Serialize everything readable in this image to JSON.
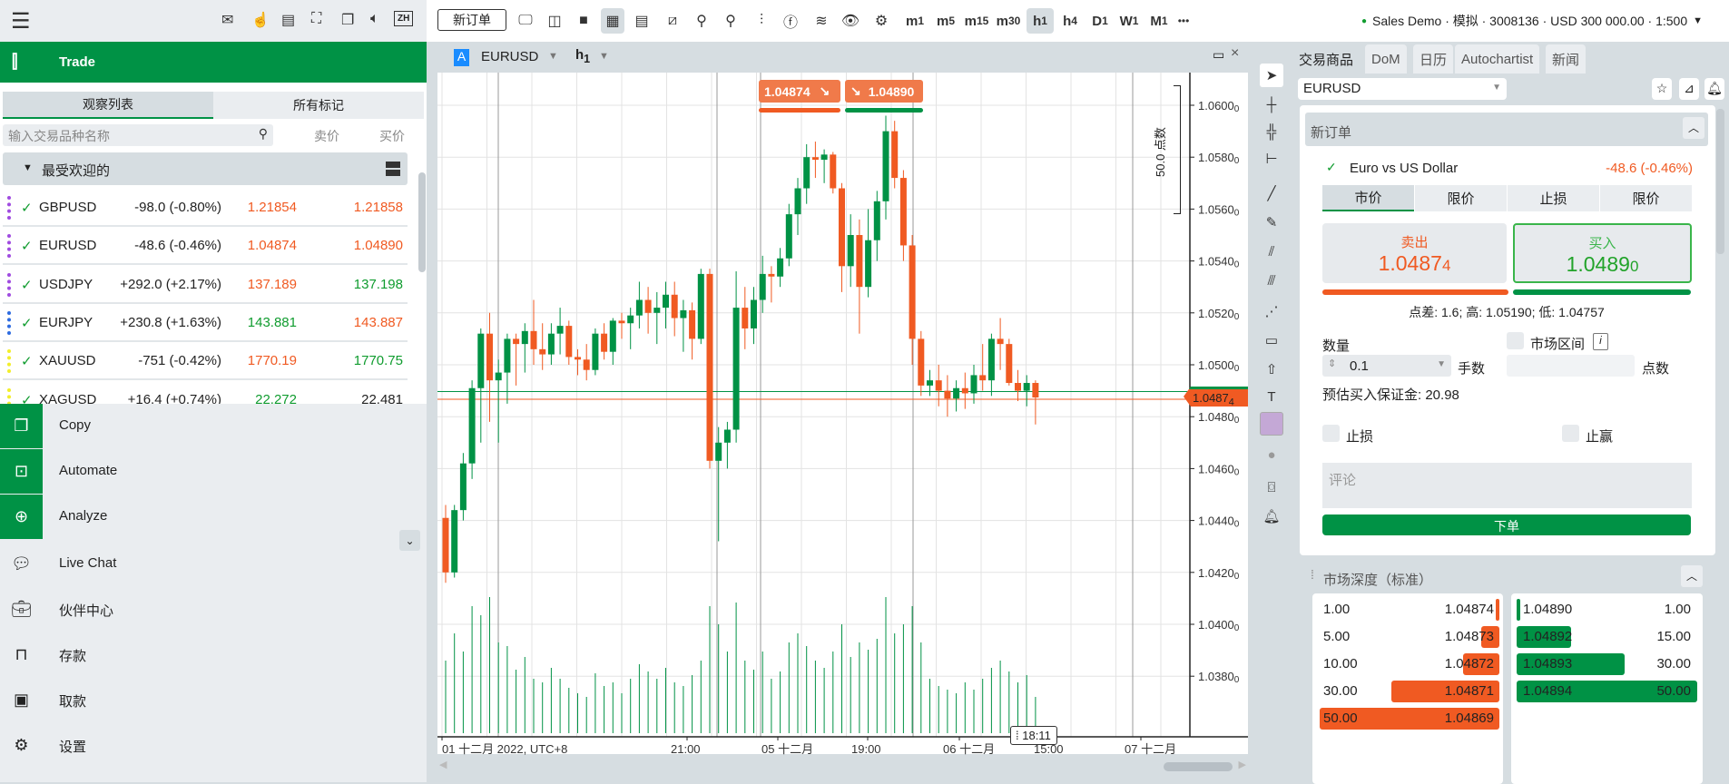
{
  "topbar": {
    "zh": "ZH",
    "new_order": "新订单",
    "timeframes": [
      {
        "l": "m",
        "s": "1"
      },
      {
        "l": "m",
        "s": "5"
      },
      {
        "l": "m",
        "s": "15"
      },
      {
        "l": "m",
        "s": "30"
      },
      {
        "l": "h",
        "s": "1",
        "active": true
      },
      {
        "l": "h",
        "s": "4"
      },
      {
        "l": "D",
        "s": "1"
      },
      {
        "l": "W",
        "s": "1"
      },
      {
        "l": "M",
        "s": "1"
      }
    ],
    "more": "•••",
    "account": "Sales Demo · 模拟 · 3008136 · USD 300 000.00 · 1:500",
    "account_status_color": "#109c2f"
  },
  "sidebar": {
    "trade": "Trade",
    "tabs": [
      "观察列表",
      "所有标记"
    ],
    "search_placeholder": "输入交易品种名称",
    "col_sell": "卖价",
    "col_buy": "买价",
    "group": "最受欢迎的",
    "rows": [
      {
        "sym": "GBPUSD",
        "chg": "-98.0 (-0.80%)",
        "sell": "1.21854",
        "buy": "1.21858",
        "sc": "red",
        "bc": "red",
        "tag": "#a04be0"
      },
      {
        "sym": "EURUSD",
        "chg": "-48.6 (-0.46%)",
        "sell": "1.04874",
        "buy": "1.04890",
        "sc": "red",
        "bc": "red",
        "tag": "#a04be0"
      },
      {
        "sym": "USDJPY",
        "chg": "+292.0 (+2.17%)",
        "sell": "137.189",
        "buy": "137.198",
        "sc": "red",
        "bc": "grn",
        "tag": "#a04be0"
      },
      {
        "sym": "EURJPY",
        "chg": "+230.8 (+1.63%)",
        "sell": "143.881",
        "buy": "143.887",
        "sc": "grn",
        "bc": "red",
        "tag": "#2d6be0"
      },
      {
        "sym": "XAUUSD",
        "chg": "-751 (-0.42%)",
        "sell": "1770.19",
        "buy": "1770.75",
        "sc": "red",
        "bc": "grn",
        "tag": "#f2ee2a"
      },
      {
        "sym": "XAGUSD",
        "chg": "+16.4 (+0.74%)",
        "sell": "22.272",
        "buy": "22.481",
        "sc": "grn",
        "bc": "",
        "tag": "#f2ee2a"
      }
    ],
    "menu_green": [
      "Copy",
      "Automate",
      "Analyze"
    ],
    "menu": [
      "Live Chat",
      "伙伴中心",
      "存款",
      "取款",
      "设置"
    ]
  },
  "chart": {
    "symbol": "EURUSD",
    "timeframe": "h",
    "timeframe_sub": "1",
    "bid_tag": "1.04874",
    "ask_tag": "1.04890",
    "ruler": "50.0 点数",
    "price_label": "1.0487",
    "price_label_sub": "4",
    "cursor_time": "18:11"
  },
  "chart_data": {
    "type": "candlestick",
    "symbol": "EURUSD",
    "interval": "h1",
    "ylim": [
      1.0365,
      1.0615
    ],
    "yticks": [
      "1.0600",
      "1.0580",
      "1.0560",
      "1.0540",
      "1.0520",
      "1.0500",
      "1.0480",
      "1.0460",
      "1.0440",
      "1.0420",
      "1.0400",
      "1.0380"
    ],
    "ytick_sub": "0",
    "xticks": [
      "01 十二月 2022, UTC+8",
      "21:00",
      "05 十二月",
      "19:00",
      "06 十二月",
      "15:00",
      "07 十二月"
    ],
    "bid": 1.04874,
    "ask": 1.0489,
    "up_color": "#009245",
    "down_color": "#f05a22",
    "ohlcv": [
      [
        1.0441,
        1.0446,
        1.0416,
        1.042,
        40
      ],
      [
        1.042,
        1.0446,
        1.0418,
        1.0444,
        55
      ],
      [
        1.0444,
        1.0466,
        1.044,
        1.0462,
        45
      ],
      [
        1.0462,
        1.0494,
        1.0456,
        1.0491,
        70
      ],
      [
        1.0491,
        1.0514,
        1.047,
        1.0512,
        65
      ],
      [
        1.0512,
        1.052,
        1.0478,
        1.0494,
        75
      ],
      [
        1.0494,
        1.0502,
        1.047,
        1.0497,
        50
      ],
      [
        1.0497,
        1.0512,
        1.0485,
        1.051,
        48
      ],
      [
        1.051,
        1.0512,
        1.0492,
        1.0508,
        35
      ],
      [
        1.0508,
        1.0516,
        1.0497,
        1.0513,
        42
      ],
      [
        1.0513,
        1.0525,
        1.05,
        1.0506,
        30
      ],
      [
        1.0506,
        1.0516,
        1.0498,
        1.0504,
        28
      ],
      [
        1.0504,
        1.0516,
        1.05,
        1.0512,
        36
      ],
      [
        1.0512,
        1.0522,
        1.0504,
        1.0515,
        30
      ],
      [
        1.0515,
        1.0517,
        1.05,
        1.0503,
        25
      ],
      [
        1.0503,
        1.0506,
        1.0496,
        1.0502,
        22
      ],
      [
        1.0502,
        1.0508,
        1.0494,
        1.0498,
        20
      ],
      [
        1.0498,
        1.0514,
        1.0496,
        1.0512,
        33
      ],
      [
        1.0512,
        1.0516,
        1.0502,
        1.0505,
        26
      ],
      [
        1.0505,
        1.0518,
        1.05,
        1.0517,
        28
      ],
      [
        1.0517,
        1.052,
        1.051,
        1.0516,
        22
      ],
      [
        1.0516,
        1.0522,
        1.0506,
        1.0519,
        30
      ],
      [
        1.0519,
        1.0532,
        1.0514,
        1.0525,
        38
      ],
      [
        1.0525,
        1.053,
        1.0512,
        1.052,
        34
      ],
      [
        1.052,
        1.0528,
        1.0508,
        1.0522,
        30
      ],
      [
        1.0522,
        1.0532,
        1.0514,
        1.0527,
        36
      ],
      [
        1.0527,
        1.0532,
        1.0511,
        1.0518,
        28
      ],
      [
        1.0518,
        1.0525,
        1.0505,
        1.0521,
        26
      ],
      [
        1.0521,
        1.0524,
        1.0502,
        1.051,
        32
      ],
      [
        1.051,
        1.0537,
        1.0508,
        1.0535,
        40
      ],
      [
        1.0535,
        1.0537,
        1.046,
        1.0463,
        70
      ],
      [
        1.0463,
        1.0476,
        1.0432,
        1.047,
        60
      ],
      [
        1.047,
        1.0478,
        1.046,
        1.0475,
        45
      ],
      [
        1.0475,
        1.0536,
        1.047,
        1.0522,
        72
      ],
      [
        1.0522,
        1.053,
        1.0506,
        1.0514,
        40
      ],
      [
        1.0514,
        1.053,
        1.0508,
        1.0525,
        35
      ],
      [
        1.0525,
        1.0542,
        1.052,
        1.0535,
        45
      ],
      [
        1.0535,
        1.0538,
        1.0524,
        1.0534,
        30
      ],
      [
        1.0534,
        1.0545,
        1.053,
        1.0541,
        34
      ],
      [
        1.0541,
        1.0562,
        1.0538,
        1.0558,
        50
      ],
      [
        1.0558,
        1.0572,
        1.055,
        1.0568,
        55
      ],
      [
        1.0568,
        1.0585,
        1.0562,
        1.058,
        48
      ],
      [
        1.058,
        1.0586,
        1.0572,
        1.0579,
        40
      ],
      [
        1.0579,
        1.0583,
        1.057,
        1.0581,
        36
      ],
      [
        1.0581,
        1.0582,
        1.0566,
        1.0568,
        45
      ],
      [
        1.0568,
        1.057,
        1.0528,
        1.0538,
        60
      ],
      [
        1.0538,
        1.0558,
        1.053,
        1.055,
        42
      ],
      [
        1.055,
        1.0556,
        1.0512,
        1.053,
        50
      ],
      [
        1.053,
        1.056,
        1.0526,
        1.0548,
        46
      ],
      [
        1.0548,
        1.0567,
        1.054,
        1.0563,
        52
      ],
      [
        1.0563,
        1.0596,
        1.0556,
        1.059,
        75
      ],
      [
        1.059,
        1.0594,
        1.0568,
        1.0572,
        55
      ],
      [
        1.0572,
        1.0575,
        1.054,
        1.0546,
        60
      ],
      [
        1.0546,
        1.055,
        1.05,
        1.051,
        70
      ],
      [
        1.051,
        1.0513,
        1.0488,
        1.0492,
        50
      ],
      [
        1.0492,
        1.0498,
        1.0488,
        1.0494,
        30
      ],
      [
        1.0494,
        1.05,
        1.0484,
        1.049,
        26
      ],
      [
        1.049,
        1.0496,
        1.048,
        1.0487,
        24
      ],
      [
        1.0487,
        1.0494,
        1.0482,
        1.0491,
        22
      ],
      [
        1.0491,
        1.0497,
        1.0483,
        1.0489,
        28
      ],
      [
        1.0489,
        1.05,
        1.0485,
        1.0496,
        24
      ],
      [
        1.0496,
        1.0508,
        1.049,
        1.0494,
        30
      ],
      [
        1.0494,
        1.0512,
        1.0488,
        1.051,
        36
      ],
      [
        1.051,
        1.0518,
        1.0498,
        1.0508,
        40
      ],
      [
        1.0508,
        1.051,
        1.0492,
        1.0493,
        34
      ],
      [
        1.0493,
        1.0498,
        1.0486,
        1.049,
        28
      ],
      [
        1.049,
        1.0496,
        1.0484,
        1.0493,
        32
      ],
      [
        1.0493,
        1.0494,
        1.0477,
        1.04874,
        20
      ]
    ]
  },
  "right": {
    "tabs": [
      "交易商品",
      "DoM",
      "日历",
      "Autochartist",
      "新闻"
    ],
    "symbol": "EURUSD",
    "order": {
      "title": "新订单",
      "name": "Euro vs US Dollar",
      "change": "-48.6 (-0.46%)",
      "types": [
        "市价",
        "限价",
        "止损",
        "限价"
      ],
      "sell_label": "卖出",
      "sell_price": "1.0487",
      "sell_sub": "4",
      "buy_label": "买入",
      "buy_price": "1.0489",
      "buy_sub": "0",
      "stats": "点差: 1.6; 高: 1.05190; 低: 1.04757",
      "qty_label": "数量",
      "qty": "0.1",
      "lots": "手数",
      "range_label": "市场区间",
      "points": "点数",
      "margin": "预估买入保证金: 20.98",
      "sl": "止损",
      "tp": "止赢",
      "comment_placeholder": "评论",
      "submit": "下单"
    },
    "dom": {
      "title": "市场深度（标准）",
      "sell": [
        {
          "vol": "1.00",
          "price": "1.04874",
          "fill": 0.02
        },
        {
          "vol": "5.00",
          "price": "1.04873",
          "fill": 0.1
        },
        {
          "vol": "10.00",
          "price": "1.04872",
          "fill": 0.2
        },
        {
          "vol": "30.00",
          "price": "1.04871",
          "fill": 0.6
        },
        {
          "vol": "50.00",
          "price": "1.04869",
          "fill": 1.0
        }
      ],
      "buy": [
        {
          "vol": "1.00",
          "price": "1.04890",
          "fill": 0.02
        },
        {
          "vol": "15.00",
          "price": "1.04892",
          "fill": 0.3
        },
        {
          "vol": "30.00",
          "price": "1.04893",
          "fill": 0.6
        },
        {
          "vol": "50.00",
          "price": "1.04894",
          "fill": 1.0
        }
      ]
    }
  }
}
